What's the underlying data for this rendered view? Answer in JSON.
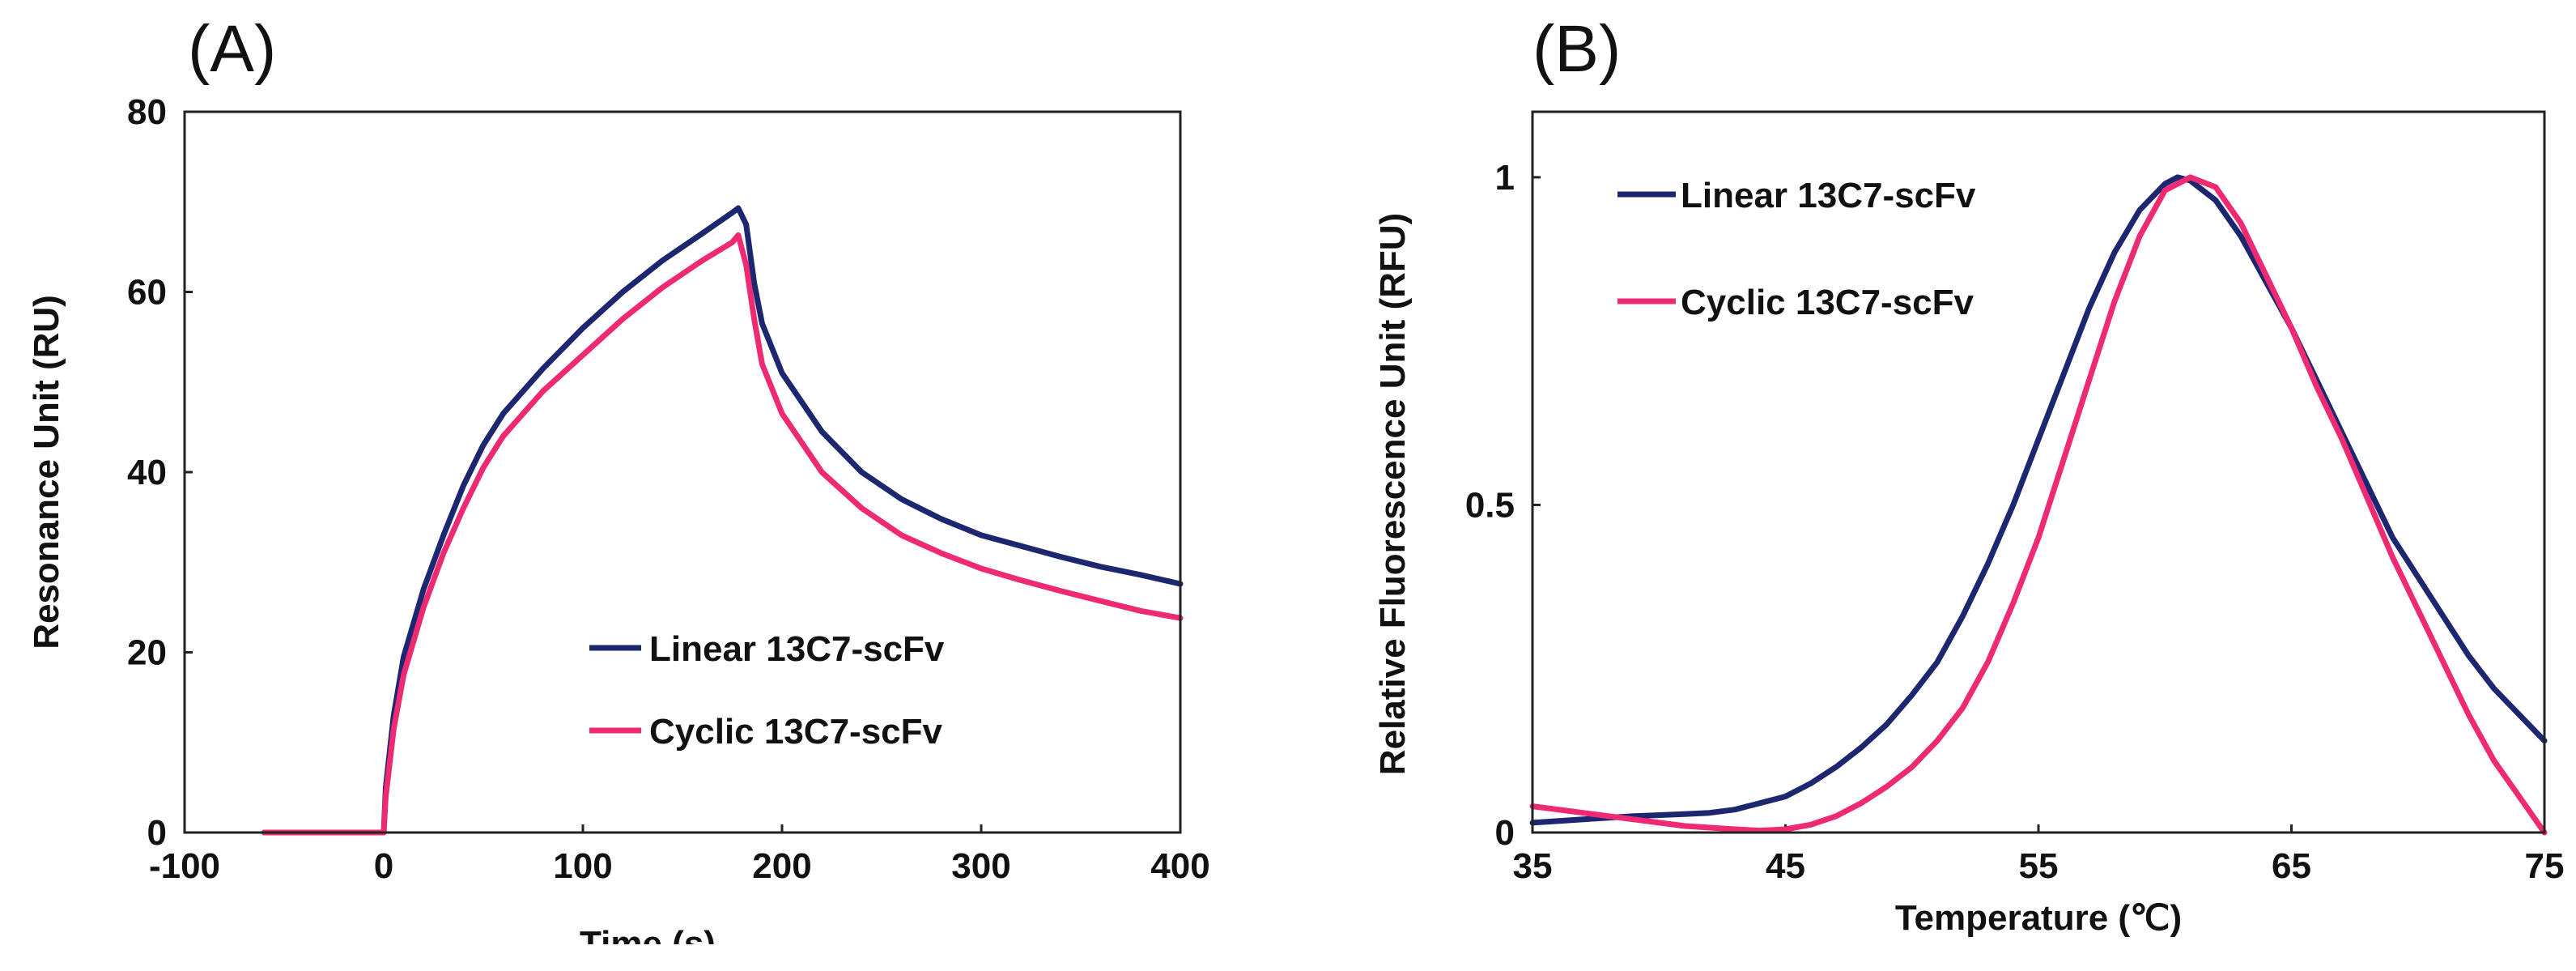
{
  "colors": {
    "linear": "#1c2770",
    "cyclic": "#ee2a72"
  },
  "chart_data": [
    {
      "panel": "(A)",
      "type": "line",
      "title": "",
      "xlabel": "Time (s)",
      "ylabel": "Resonance Unit (RU)",
      "xlim": [
        -100,
        400
      ],
      "ylim": [
        0,
        80
      ],
      "xticks": [
        "-100",
        "0",
        "100",
        "200",
        "300",
        "400"
      ],
      "xtick_values": [
        -100,
        0,
        100,
        200,
        300,
        400
      ],
      "yticks": [
        "0",
        "20",
        "40",
        "60",
        "80"
      ],
      "ytick_values": [
        0,
        20,
        40,
        60,
        80
      ],
      "grid": false,
      "legend_position": "bottom-center",
      "series": [
        {
          "name": "Linear 13C7-scFv",
          "color_key": "linear",
          "x": [
            -60,
            0,
            1,
            5,
            10,
            20,
            30,
            40,
            50,
            60,
            80,
            100,
            120,
            140,
            160,
            175,
            178,
            182,
            186,
            190,
            200,
            220,
            240,
            260,
            280,
            300,
            320,
            340,
            360,
            380,
            400
          ],
          "y": [
            0,
            0,
            5,
            13,
            19.5,
            27,
            33,
            38.5,
            43,
            46.5,
            51.5,
            56,
            60,
            63.5,
            66.5,
            68.8,
            69.3,
            67.5,
            61,
            56.5,
            51,
            44.5,
            40,
            37,
            34.8,
            33,
            31.8,
            30.6,
            29.5,
            28.6,
            27.6
          ]
        },
        {
          "name": "Cyclic 13C7-scFv",
          "color_key": "cyclic",
          "x": [
            -60,
            0,
            1,
            5,
            10,
            20,
            30,
            40,
            50,
            60,
            80,
            100,
            120,
            140,
            160,
            175,
            178,
            182,
            186,
            190,
            200,
            220,
            240,
            260,
            280,
            300,
            320,
            340,
            360,
            380,
            400
          ],
          "y": [
            0,
            0,
            4,
            11.5,
            17.5,
            25,
            31,
            36,
            40.5,
            44,
            49,
            53,
            57,
            60.5,
            63.5,
            65.5,
            66.3,
            63,
            57,
            52,
            46.5,
            40,
            36,
            33,
            31,
            29.3,
            28,
            26.8,
            25.7,
            24.6,
            23.8
          ]
        }
      ]
    },
    {
      "panel": "(B)",
      "type": "line",
      "title": "",
      "xlabel": "Temperature (℃)",
      "ylabel": "Relative Fluorescence Unit (RFU)",
      "xlim": [
        35,
        75
      ],
      "ylim": [
        0,
        1.1
      ],
      "xticks": [
        "35",
        "45",
        "55",
        "65",
        "75"
      ],
      "xtick_values": [
        35,
        45,
        55,
        65,
        75
      ],
      "yticks": [
        "0",
        "0.5",
        "1"
      ],
      "ytick_values": [
        0,
        0.5,
        1
      ],
      "grid": false,
      "legend_position": "top-left",
      "series": [
        {
          "name": "Linear 13C7-scFv",
          "color_key": "linear",
          "x": [
            35,
            37,
            39,
            41,
            42,
            43,
            44,
            45,
            46,
            47,
            48,
            49,
            50,
            51,
            52,
            53,
            54,
            55,
            56,
            57,
            58,
            59,
            60,
            60.5,
            61,
            62,
            63,
            64,
            65,
            66,
            67,
            68,
            69,
            70,
            71,
            72,
            73,
            74,
            75
          ],
          "y": [
            0.015,
            0.02,
            0.025,
            0.028,
            0.03,
            0.035,
            0.045,
            0.055,
            0.075,
            0.1,
            0.13,
            0.165,
            0.21,
            0.26,
            0.33,
            0.41,
            0.5,
            0.6,
            0.7,
            0.8,
            0.885,
            0.95,
            0.99,
            1.0,
            0.995,
            0.965,
            0.91,
            0.84,
            0.77,
            0.69,
            0.61,
            0.53,
            0.45,
            0.39,
            0.33,
            0.27,
            0.22,
            0.18,
            0.14
          ]
        },
        {
          "name": "Cyclic 13C7-scFv",
          "color_key": "cyclic",
          "x": [
            35,
            37,
            39,
            41,
            43,
            44,
            45,
            46,
            47,
            48,
            49,
            50,
            51,
            52,
            53,
            54,
            55,
            56,
            57,
            58,
            59,
            60,
            61,
            62,
            63,
            64,
            65,
            66,
            67,
            68,
            69,
            70,
            71,
            72,
            73,
            74,
            75
          ],
          "y": [
            0.04,
            0.03,
            0.02,
            0.01,
            0.005,
            0.003,
            0.005,
            0.012,
            0.025,
            0.045,
            0.07,
            0.1,
            0.14,
            0.19,
            0.26,
            0.35,
            0.45,
            0.57,
            0.69,
            0.81,
            0.91,
            0.98,
            1.0,
            0.985,
            0.93,
            0.85,
            0.77,
            0.68,
            0.6,
            0.51,
            0.42,
            0.34,
            0.26,
            0.18,
            0.11,
            0.055,
            0.0
          ]
        }
      ]
    }
  ]
}
